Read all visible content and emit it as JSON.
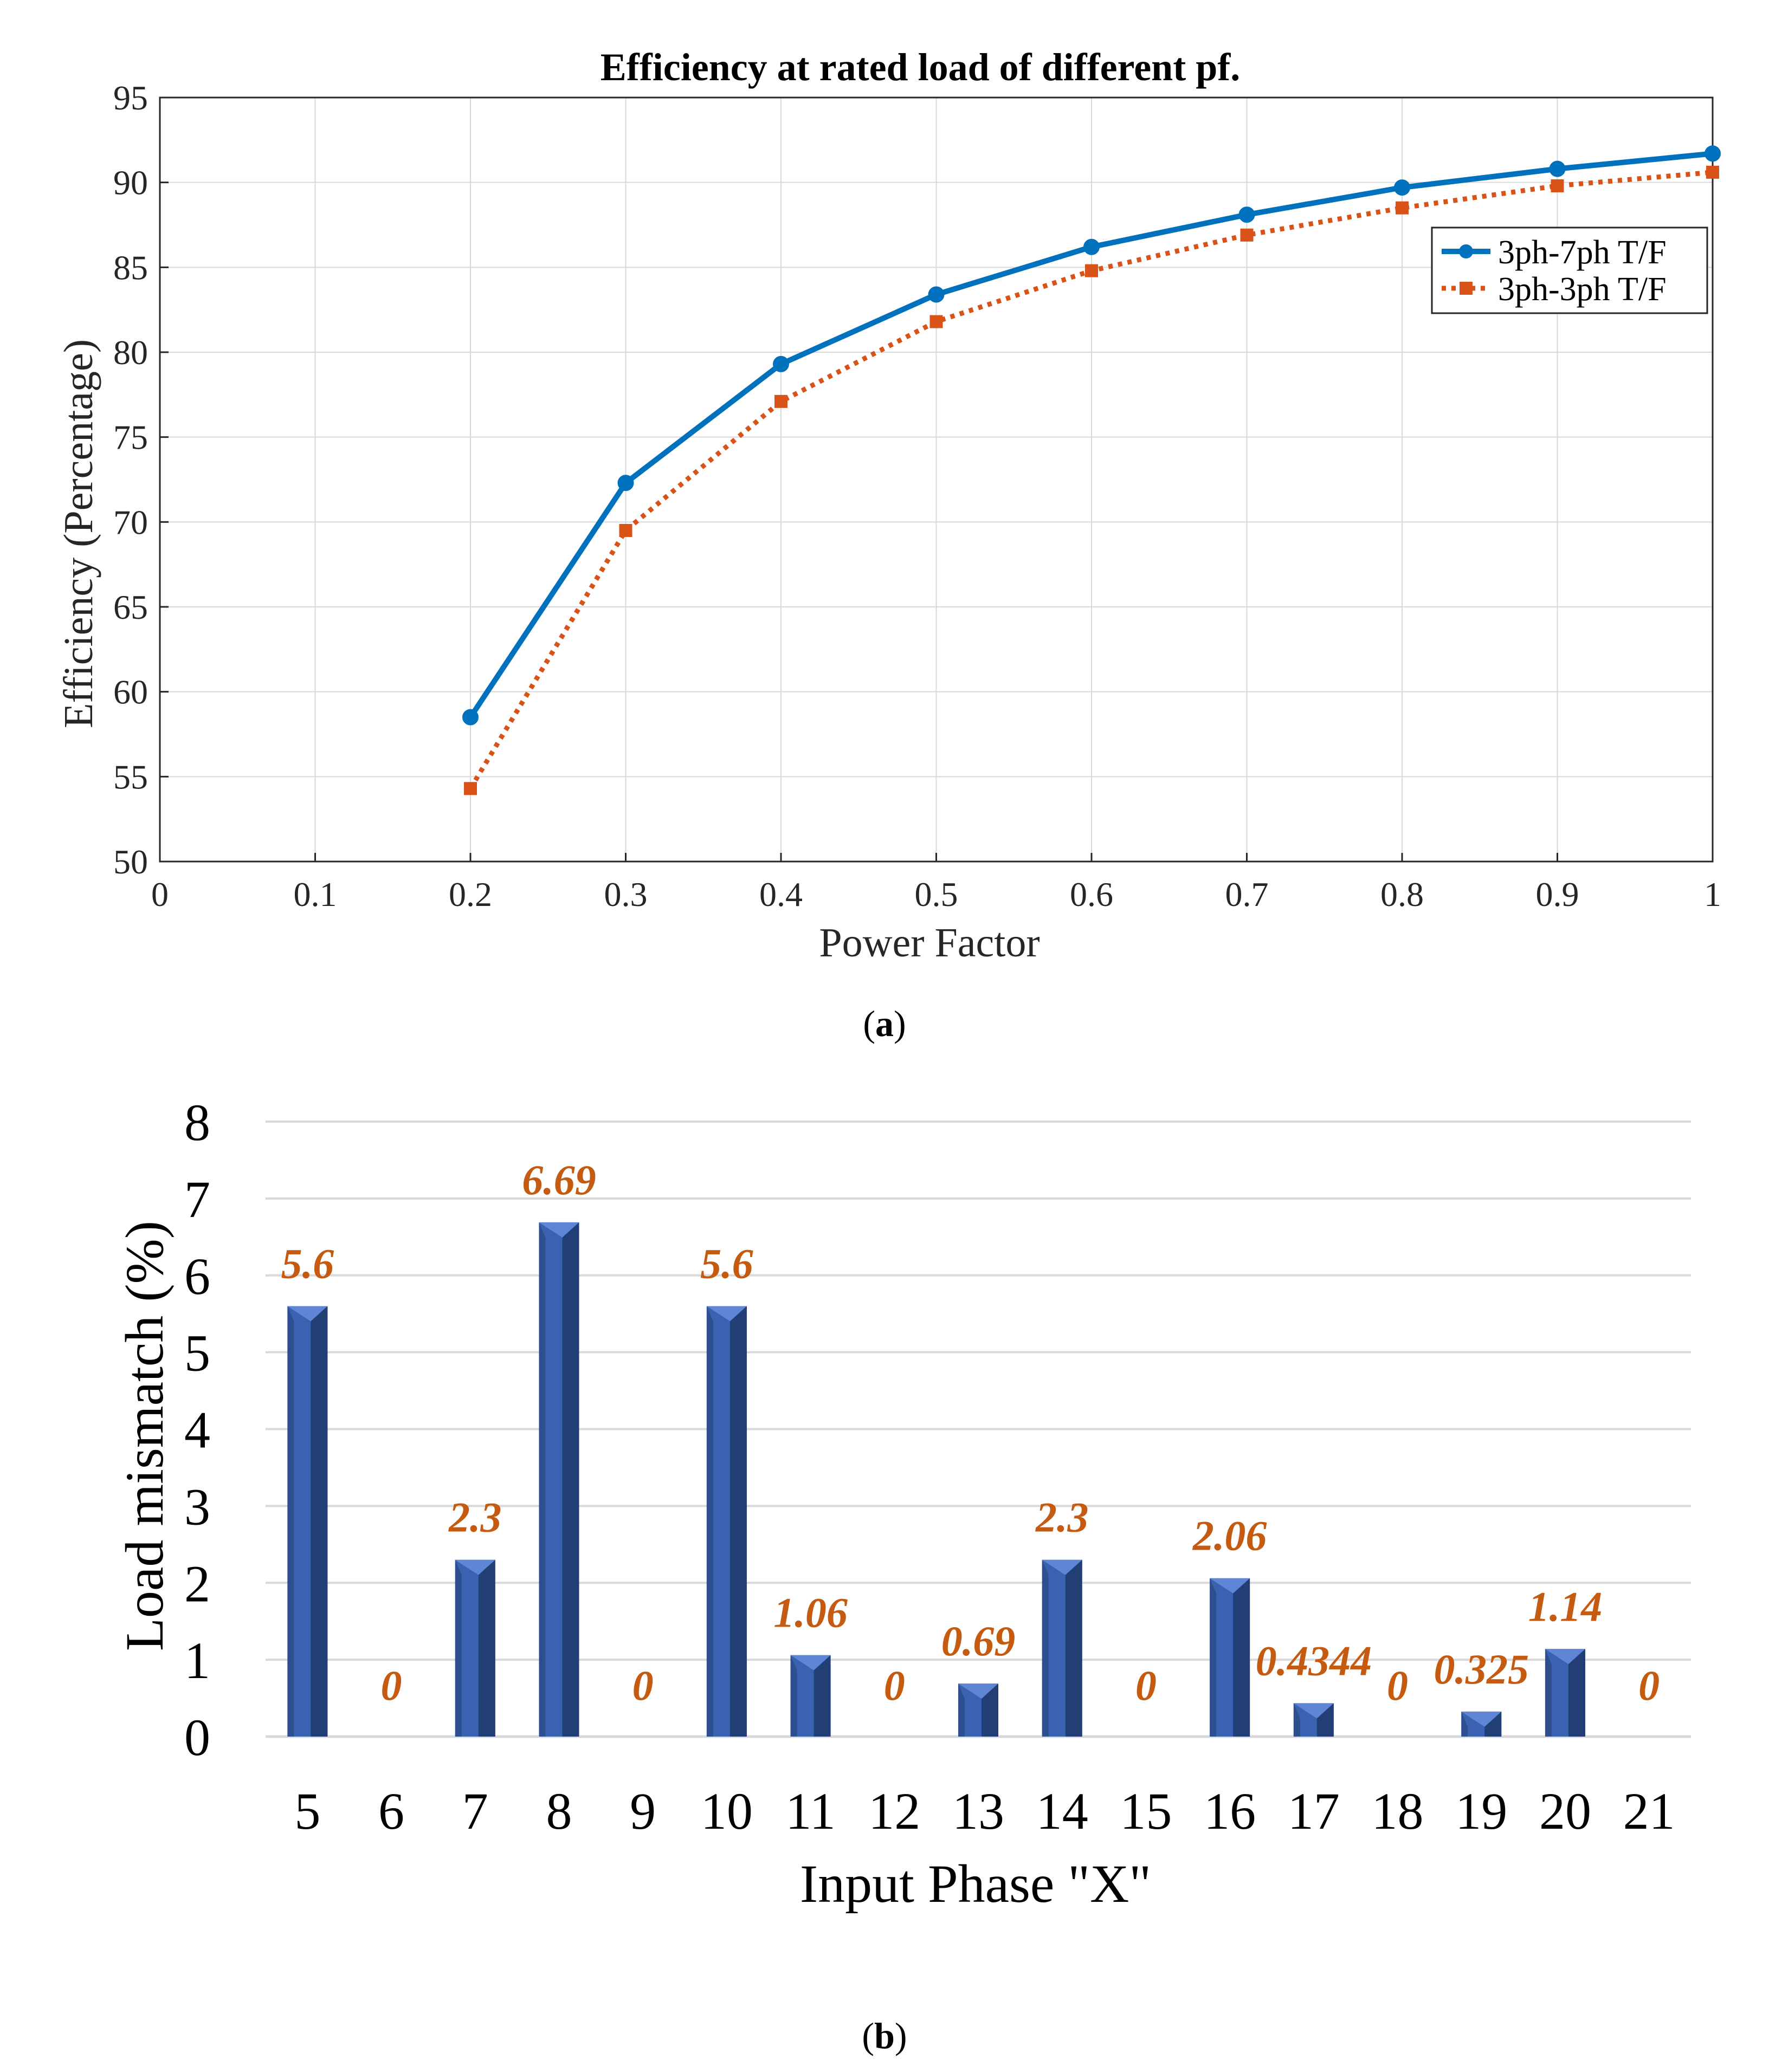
{
  "colors": {
    "line_7ph": "#0072BD",
    "line_3ph": "#D95319",
    "bar_front": "#3B62B0",
    "bar_side": "#223F75",
    "bar_top": "#5F86D6",
    "bar_label": "#C55A11",
    "grid": "#D9D9D9",
    "axis": "#262626"
  },
  "chart_data": [
    {
      "type": "line",
      "title": "Efficiency at rated load of different pf.",
      "xlabel": "Power Factor",
      "ylabel": "Efficiency (Percentage)",
      "xlim": [
        0,
        1
      ],
      "ylim": [
        50,
        95
      ],
      "xticks": [
        "0",
        "0.1",
        "0.2",
        "0.3",
        "0.4",
        "0.5",
        "0.6",
        "0.7",
        "0.8",
        "0.9",
        "1"
      ],
      "yticks": [
        "50",
        "55",
        "60",
        "65",
        "70",
        "75",
        "80",
        "85",
        "90",
        "95"
      ],
      "grid": true,
      "legend_position": "right",
      "x": [
        0.2,
        0.3,
        0.4,
        0.5,
        0.6,
        0.7,
        0.8,
        0.9,
        1.0
      ],
      "series": [
        {
          "name": "3ph-7ph T/F",
          "values": [
            58.5,
            72.3,
            79.3,
            83.4,
            86.2,
            88.1,
            89.7,
            90.8,
            91.7
          ],
          "style": "solid",
          "marker": "star"
        },
        {
          "name": "3ph-3ph T/F",
          "values": [
            54.3,
            69.5,
            77.1,
            81.8,
            84.8,
            86.9,
            88.5,
            89.8,
            90.6
          ],
          "style": "dotted",
          "marker": "square"
        }
      ],
      "caption": "a"
    },
    {
      "type": "bar",
      "xlabel": "Input Phase \"X\"",
      "ylabel": "Load mismatch (%)",
      "ylim": [
        0,
        8
      ],
      "yticks": [
        "0",
        "1",
        "2",
        "3",
        "4",
        "5",
        "6",
        "7",
        "8"
      ],
      "grid": true,
      "categories": [
        "5",
        "6",
        "7",
        "8",
        "9",
        "10",
        "11",
        "12",
        "13",
        "14",
        "15",
        "16",
        "17",
        "18",
        "19",
        "20",
        "21"
      ],
      "values": [
        5.6,
        0,
        2.3,
        6.69,
        0,
        5.6,
        1.06,
        0,
        0.69,
        2.3,
        0,
        2.06,
        0.4344,
        0,
        0.325,
        1.14,
        0
      ],
      "labels": [
        "5.6",
        "0",
        "2.3",
        "6.69",
        "0",
        "5.6",
        "1.06",
        "0",
        "0.69",
        "2.3",
        "0",
        "2.06",
        "0.4344",
        "0",
        "0.325",
        "1.14",
        "0"
      ],
      "caption": "b"
    }
  ]
}
